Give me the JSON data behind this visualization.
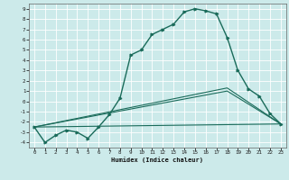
{
  "title": "",
  "xlabel": "Humidex (Indice chaleur)",
  "bg_color": "#cceaea",
  "grid_color": "#b0d8d8",
  "line_color": "#1a6b5a",
  "xlim": [
    -0.5,
    23.5
  ],
  "ylim": [
    -4.5,
    9.5
  ],
  "xticks": [
    0,
    1,
    2,
    3,
    4,
    5,
    6,
    7,
    8,
    9,
    10,
    11,
    12,
    13,
    14,
    15,
    16,
    17,
    18,
    19,
    20,
    21,
    22,
    23
  ],
  "yticks": [
    -4,
    -3,
    -2,
    -1,
    0,
    1,
    2,
    3,
    4,
    5,
    6,
    7,
    8,
    9
  ],
  "series1_x": [
    0,
    1,
    2,
    3,
    4,
    5,
    6,
    7,
    8,
    9,
    10,
    11,
    12,
    13,
    14,
    15,
    16,
    17,
    18,
    19,
    20,
    21,
    22,
    23
  ],
  "series1_y": [
    -2.5,
    -4.0,
    -3.3,
    -2.8,
    -3.0,
    -3.6,
    -2.5,
    -1.3,
    0.3,
    4.5,
    5.0,
    6.5,
    7.0,
    7.5,
    8.7,
    9.0,
    8.8,
    8.5,
    6.2,
    3.0,
    1.2,
    0.5,
    -1.2,
    -2.2
  ],
  "series2_x": [
    0,
    23
  ],
  "series2_y": [
    -2.5,
    -2.2
  ],
  "series3_x": [
    0,
    18,
    23
  ],
  "series3_y": [
    -2.5,
    1.3,
    -2.2
  ],
  "series4_x": [
    0,
    18,
    23
  ],
  "series4_y": [
    -2.5,
    1.0,
    -2.2
  ]
}
